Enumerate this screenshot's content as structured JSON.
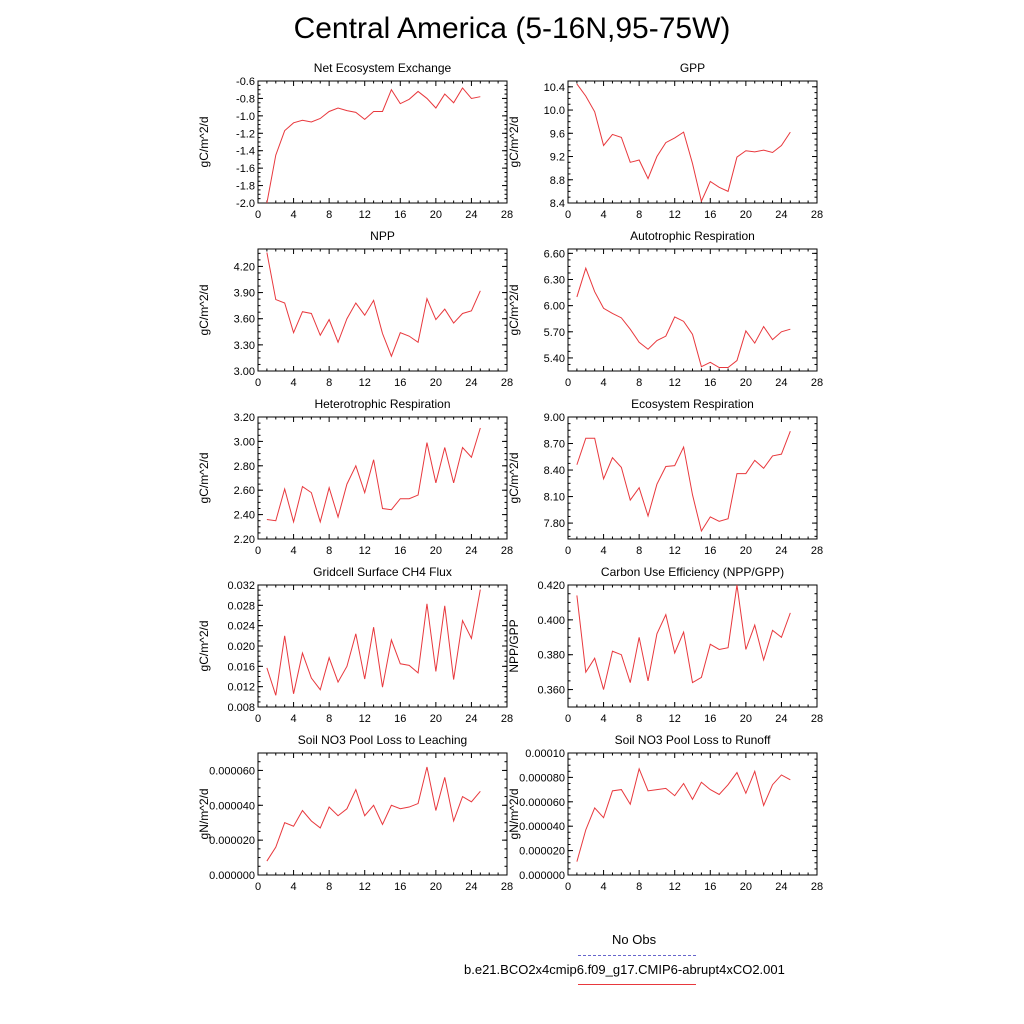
{
  "title": "Central America (5-16N,95-75W)",
  "legend": {
    "obs_label": "No Obs",
    "obs_color": "#6666cc",
    "model_label": "b.e21.BCO2x4cmip6.f09_g17.CMIP6-abrupt4xCO2.001",
    "model_color": "#e8383d"
  },
  "chart_data": [
    {
      "type": "line",
      "title": "Net Ecosystem Exchange",
      "ylabel": "gC/m^2/d",
      "xlim": [
        0,
        28
      ],
      "xticks": [
        0,
        4,
        8,
        12,
        16,
        20,
        24,
        28
      ],
      "ylim": [
        -2.0,
        -0.6
      ],
      "yticks": [
        "-2.0",
        "-1.8",
        "-1.6",
        "-1.4",
        "-1.2",
        "-1.0",
        "-0.8",
        "-0.6"
      ],
      "x": [
        1,
        2,
        3,
        4,
        5,
        6,
        7,
        8,
        9,
        10,
        11,
        12,
        13,
        14,
        15,
        16,
        17,
        18,
        19,
        20,
        21,
        22,
        23,
        24,
        25
      ],
      "values": [
        -2.0,
        -1.45,
        -1.17,
        -1.08,
        -1.05,
        -1.07,
        -1.03,
        -0.95,
        -0.91,
        -0.94,
        -0.96,
        -1.04,
        -0.95,
        -0.95,
        -0.7,
        -0.86,
        -0.81,
        -0.72,
        -0.8,
        -0.91,
        -0.75,
        -0.85,
        -0.68,
        -0.8,
        -0.78
      ]
    },
    {
      "type": "line",
      "title": "GPP",
      "ylabel": "gC/m^2/d",
      "xlim": [
        0,
        28
      ],
      "xticks": [
        0,
        4,
        8,
        12,
        16,
        20,
        24,
        28
      ],
      "ylim": [
        8.4,
        10.5
      ],
      "yticks": [
        "8.4",
        "8.8",
        "9.2",
        "9.6",
        "10.0",
        "10.4"
      ],
      "x": [
        1,
        2,
        3,
        4,
        5,
        6,
        7,
        8,
        9,
        10,
        11,
        12,
        13,
        14,
        15,
        16,
        17,
        18,
        19,
        20,
        21,
        22,
        23,
        24,
        25
      ],
      "values": [
        10.45,
        10.24,
        9.97,
        9.39,
        9.58,
        9.53,
        9.1,
        9.14,
        8.82,
        9.2,
        9.44,
        9.52,
        9.62,
        9.08,
        8.43,
        8.77,
        8.67,
        8.6,
        9.19,
        9.3,
        9.28,
        9.31,
        9.27,
        9.39,
        9.62
      ]
    },
    {
      "type": "line",
      "title": "NPP",
      "ylabel": "gC/m^2/d",
      "xlim": [
        0,
        28
      ],
      "xticks": [
        0,
        4,
        8,
        12,
        16,
        20,
        24,
        28
      ],
      "ylim": [
        3.0,
        4.4
      ],
      "yticks": [
        "3.00",
        "3.30",
        "3.60",
        "3.90",
        "4.20"
      ],
      "x": [
        1,
        2,
        3,
        4,
        5,
        6,
        7,
        8,
        9,
        10,
        11,
        12,
        13,
        14,
        15,
        16,
        17,
        18,
        19,
        20,
        21,
        22,
        23,
        24,
        25
      ],
      "values": [
        4.36,
        3.82,
        3.78,
        3.44,
        3.68,
        3.66,
        3.41,
        3.59,
        3.33,
        3.6,
        3.78,
        3.64,
        3.81,
        3.43,
        3.17,
        3.44,
        3.4,
        3.33,
        3.83,
        3.59,
        3.71,
        3.55,
        3.66,
        3.69,
        3.92
      ]
    },
    {
      "type": "line",
      "title": "Autotrophic Respiration",
      "ylabel": "gC/m^2/d",
      "xlim": [
        0,
        28
      ],
      "xticks": [
        0,
        4,
        8,
        12,
        16,
        20,
        24,
        28
      ],
      "ylim": [
        5.25,
        6.65
      ],
      "yticks": [
        "5.40",
        "5.70",
        "6.00",
        "6.30",
        "6.60"
      ],
      "x": [
        1,
        2,
        3,
        4,
        5,
        6,
        7,
        8,
        9,
        10,
        11,
        12,
        13,
        14,
        15,
        16,
        17,
        18,
        19,
        20,
        21,
        22,
        23,
        24,
        25
      ],
      "values": [
        6.1,
        6.43,
        6.16,
        5.97,
        5.91,
        5.86,
        5.73,
        5.58,
        5.5,
        5.6,
        5.65,
        5.87,
        5.82,
        5.67,
        5.3,
        5.35,
        5.29,
        5.29,
        5.37,
        5.71,
        5.57,
        5.76,
        5.61,
        5.7,
        5.73
      ]
    },
    {
      "type": "line",
      "title": "Heterotrophic Respiration",
      "ylabel": "gC/m^2/d",
      "xlim": [
        0,
        28
      ],
      "xticks": [
        0,
        4,
        8,
        12,
        16,
        20,
        24,
        28
      ],
      "ylim": [
        2.2,
        3.2
      ],
      "yticks": [
        "2.20",
        "2.40",
        "2.60",
        "2.80",
        "3.00",
        "3.20"
      ],
      "x": [
        1,
        2,
        3,
        4,
        5,
        6,
        7,
        8,
        9,
        10,
        11,
        12,
        13,
        14,
        15,
        16,
        17,
        18,
        19,
        20,
        21,
        22,
        23,
        24,
        25
      ],
      "values": [
        2.36,
        2.35,
        2.61,
        2.34,
        2.63,
        2.58,
        2.34,
        2.62,
        2.38,
        2.65,
        2.8,
        2.58,
        2.85,
        2.45,
        2.44,
        2.53,
        2.53,
        2.56,
        2.99,
        2.66,
        2.95,
        2.66,
        2.95,
        2.87,
        3.11
      ]
    },
    {
      "type": "line",
      "title": "Ecosystem Respiration",
      "ylabel": "gC/m^2/d",
      "xlim": [
        0,
        28
      ],
      "xticks": [
        0,
        4,
        8,
        12,
        16,
        20,
        24,
        28
      ],
      "ylim": [
        7.62,
        9.0
      ],
      "yticks": [
        "7.80",
        "8.10",
        "8.40",
        "8.70",
        "9.00"
      ],
      "x": [
        1,
        2,
        3,
        4,
        5,
        6,
        7,
        8,
        9,
        10,
        11,
        12,
        13,
        14,
        15,
        16,
        17,
        18,
        19,
        20,
        21,
        22,
        23,
        24,
        25
      ],
      "values": [
        8.46,
        8.76,
        8.76,
        8.3,
        8.54,
        8.43,
        8.06,
        8.2,
        7.88,
        8.24,
        8.44,
        8.45,
        8.66,
        8.12,
        7.71,
        7.87,
        7.82,
        7.85,
        8.36,
        8.36,
        8.51,
        8.42,
        8.56,
        8.58,
        8.84
      ]
    },
    {
      "type": "line",
      "title": "Gridcell Surface CH4 Flux",
      "ylabel": "gC/m^2/d",
      "xlim": [
        0,
        28
      ],
      "xticks": [
        0,
        4,
        8,
        12,
        16,
        20,
        24,
        28
      ],
      "ylim": [
        0.008,
        0.032
      ],
      "yticks": [
        "0.008",
        "0.012",
        "0.016",
        "0.020",
        "0.024",
        "0.028",
        "0.032"
      ],
      "x": [
        1,
        2,
        3,
        4,
        5,
        6,
        7,
        8,
        9,
        10,
        11,
        12,
        13,
        14,
        15,
        16,
        17,
        18,
        19,
        20,
        21,
        22,
        23,
        24,
        25
      ],
      "values": [
        0.0157,
        0.0103,
        0.022,
        0.0106,
        0.0186,
        0.0137,
        0.0114,
        0.0177,
        0.0129,
        0.016,
        0.0224,
        0.0135,
        0.0237,
        0.0119,
        0.0212,
        0.0165,
        0.0162,
        0.0147,
        0.0283,
        0.015,
        0.0279,
        0.0134,
        0.025,
        0.0215,
        0.0311
      ]
    },
    {
      "type": "line",
      "title": "Carbon Use Efficiency (NPP/GPP)",
      "ylabel": "NPP/GPP",
      "xlim": [
        0,
        28
      ],
      "xticks": [
        0,
        4,
        8,
        12,
        16,
        20,
        24,
        28
      ],
      "ylim": [
        0.35,
        0.42
      ],
      "yticks": [
        "0.360",
        "0.380",
        "0.400",
        "0.420"
      ],
      "x": [
        1,
        2,
        3,
        4,
        5,
        6,
        7,
        8,
        9,
        10,
        11,
        12,
        13,
        14,
        15,
        16,
        17,
        18,
        19,
        20,
        21,
        22,
        23,
        24,
        25
      ],
      "values": [
        0.414,
        0.37,
        0.378,
        0.36,
        0.382,
        0.38,
        0.364,
        0.39,
        0.365,
        0.392,
        0.403,
        0.381,
        0.393,
        0.364,
        0.367,
        0.386,
        0.383,
        0.384,
        0.42,
        0.383,
        0.397,
        0.377,
        0.394,
        0.39,
        0.404
      ]
    },
    {
      "type": "line",
      "title": "Soil NO3 Pool Loss to Leaching",
      "ylabel": "gN/m^2/d",
      "xlim": [
        0,
        28
      ],
      "xticks": [
        0,
        4,
        8,
        12,
        16,
        20,
        24,
        28
      ],
      "ylim": [
        0.0,
        7e-05
      ],
      "yticks": [
        "0.000000",
        "0.000020",
        "0.000040",
        "0.000060"
      ],
      "x": [
        1,
        2,
        3,
        4,
        5,
        6,
        7,
        8,
        9,
        10,
        11,
        12,
        13,
        14,
        15,
        16,
        17,
        18,
        19,
        20,
        21,
        22,
        23,
        24,
        25
      ],
      "values": [
        8e-06,
        1.6e-05,
        3e-05,
        2.8e-05,
        3.7e-05,
        3.1e-05,
        2.7e-05,
        3.9e-05,
        3.4e-05,
        3.8e-05,
        4.9e-05,
        3.4e-05,
        4e-05,
        2.9e-05,
        4e-05,
        3.8e-05,
        3.9e-05,
        4.1e-05,
        6.2e-05,
        3.7e-05,
        5.6e-05,
        3.1e-05,
        4.5e-05,
        4.2e-05,
        4.8e-05
      ]
    },
    {
      "type": "line",
      "title": "Soil NO3 Pool Loss to Runoff",
      "ylabel": "gN/m^2/d",
      "xlim": [
        0,
        28
      ],
      "xticks": [
        0,
        4,
        8,
        12,
        16,
        20,
        24,
        28
      ],
      "ylim": [
        0.0,
        0.0001
      ],
      "yticks": [
        "0.000000",
        "0.000020",
        "0.000040",
        "0.000060",
        "0.000080",
        "0.00010"
      ],
      "x": [
        1,
        2,
        3,
        4,
        5,
        6,
        7,
        8,
        9,
        10,
        11,
        12,
        13,
        14,
        15,
        16,
        17,
        18,
        19,
        20,
        21,
        22,
        23,
        24,
        25
      ],
      "values": [
        1.1e-05,
        3.7e-05,
        5.5e-05,
        4.7e-05,
        6.9e-05,
        7e-05,
        5.8e-05,
        8.7e-05,
        6.9e-05,
        7e-05,
        7.1e-05,
        6.5e-05,
        7.5e-05,
        6.2e-05,
        7.6e-05,
        7e-05,
        6.6e-05,
        7.4e-05,
        8.4e-05,
        6.7e-05,
        8.5e-05,
        5.7e-05,
        7.4e-05,
        8.2e-05,
        7.8e-05
      ]
    }
  ]
}
